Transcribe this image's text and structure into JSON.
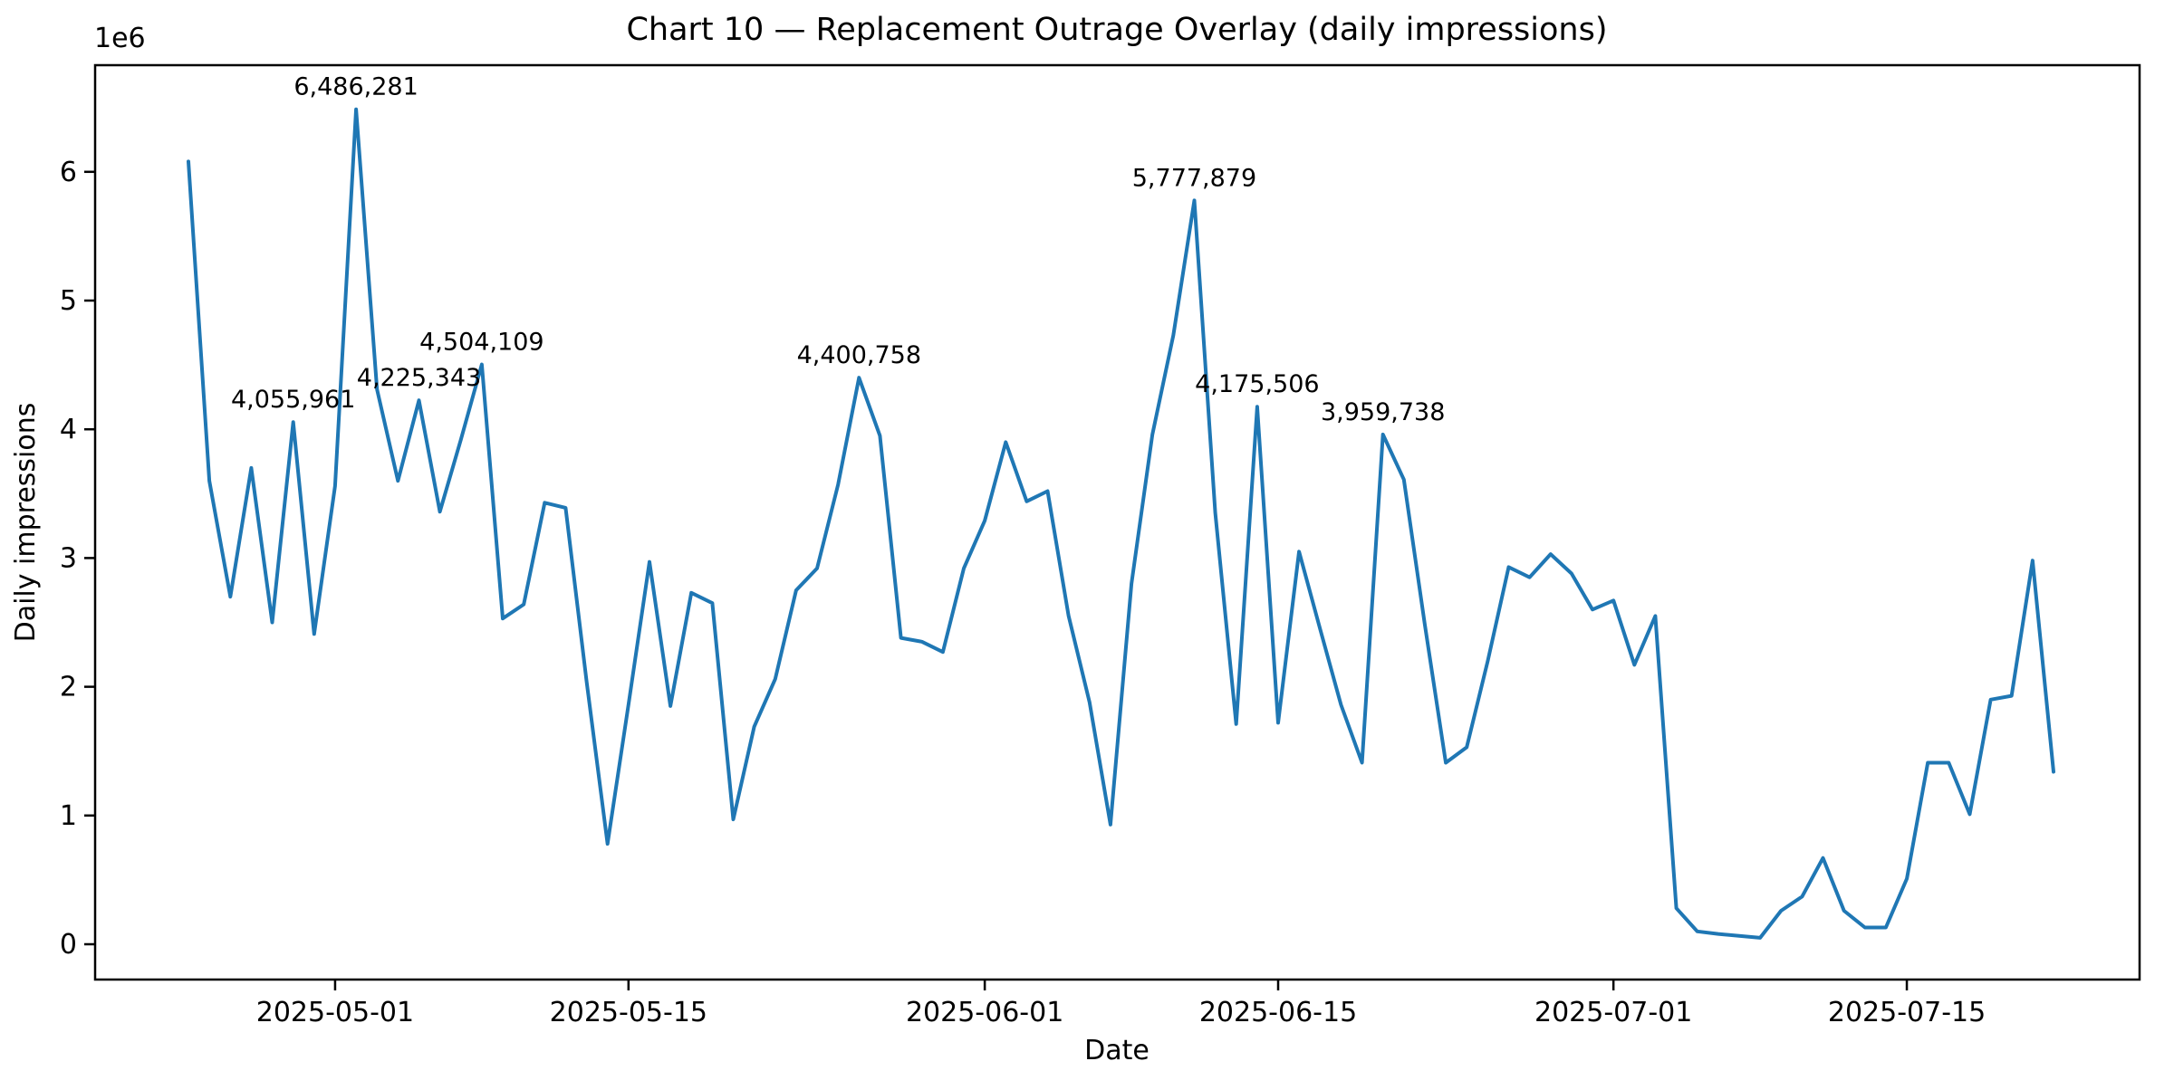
{
  "chart_data": {
    "type": "line",
    "title": "Chart 10 — Replacement Outrage Overlay (daily impressions)",
    "xlabel": "Date",
    "ylabel": "Daily impressions",
    "y_axis_offset_label": "1e6",
    "line_color": "#1f77b4",
    "grid": false,
    "legend_position": "none",
    "ylim": [
      -274000,
      6830000
    ],
    "y_tick_values": [
      0,
      1,
      2,
      3,
      4,
      5,
      6
    ],
    "x_tick_dates": [
      "2025-05-01",
      "2025-05-15",
      "2025-06-01",
      "2025-06-15",
      "2025-07-01",
      "2025-07-15"
    ],
    "points": [
      [
        "2025-04-24",
        6080000
      ],
      [
        "2025-04-25",
        3600000
      ],
      [
        "2025-04-26",
        2700000
      ],
      [
        "2025-04-27",
        3700000
      ],
      [
        "2025-04-28",
        2500000
      ],
      [
        "2025-04-29",
        4055961
      ],
      [
        "2025-04-30",
        2410000
      ],
      [
        "2025-05-01",
        3560000
      ],
      [
        "2025-05-02",
        6486281
      ],
      [
        "2025-05-03",
        4310000
      ],
      [
        "2025-05-04",
        3600000
      ],
      [
        "2025-05-05",
        4225343
      ],
      [
        "2025-05-06",
        3360000
      ],
      [
        "2025-05-07",
        3920000
      ],
      [
        "2025-05-08",
        4504109
      ],
      [
        "2025-05-09",
        2530000
      ],
      [
        "2025-05-10",
        2640000
      ],
      [
        "2025-05-11",
        3430000
      ],
      [
        "2025-05-12",
        3390000
      ],
      [
        "2025-05-13",
        2040000
      ],
      [
        "2025-05-14",
        780000
      ],
      [
        "2025-05-15",
        1860000
      ],
      [
        "2025-05-16",
        2970000
      ],
      [
        "2025-05-17",
        1850000
      ],
      [
        "2025-05-18",
        2730000
      ],
      [
        "2025-05-19",
        2650000
      ],
      [
        "2025-05-20",
        970000
      ],
      [
        "2025-05-21",
        1690000
      ],
      [
        "2025-05-22",
        2060000
      ],
      [
        "2025-05-23",
        2750000
      ],
      [
        "2025-05-24",
        2920000
      ],
      [
        "2025-05-25",
        3570000
      ],
      [
        "2025-05-26",
        4400758
      ],
      [
        "2025-05-27",
        3950000
      ],
      [
        "2025-05-28",
        2380000
      ],
      [
        "2025-05-29",
        2350000
      ],
      [
        "2025-05-30",
        2270000
      ],
      [
        "2025-05-31",
        2920000
      ],
      [
        "2025-06-01",
        3290000
      ],
      [
        "2025-06-02",
        3900000
      ],
      [
        "2025-06-03",
        3440000
      ],
      [
        "2025-06-04",
        3520000
      ],
      [
        "2025-06-05",
        2550000
      ],
      [
        "2025-06-06",
        1880000
      ],
      [
        "2025-06-07",
        930000
      ],
      [
        "2025-06-08",
        2800000
      ],
      [
        "2025-06-09",
        3960000
      ],
      [
        "2025-06-10",
        4730000
      ],
      [
        "2025-06-11",
        5777879
      ],
      [
        "2025-06-12",
        3350000
      ],
      [
        "2025-06-13",
        1710000
      ],
      [
        "2025-06-14",
        4175506
      ],
      [
        "2025-06-15",
        1720000
      ],
      [
        "2025-06-16",
        3050000
      ],
      [
        "2025-06-17",
        2450000
      ],
      [
        "2025-06-18",
        1860000
      ],
      [
        "2025-06-19",
        1410000
      ],
      [
        "2025-06-20",
        3959738
      ],
      [
        "2025-06-21",
        3610000
      ],
      [
        "2025-06-22",
        2480000
      ],
      [
        "2025-06-23",
        1410000
      ],
      [
        "2025-06-24",
        1530000
      ],
      [
        "2025-06-25",
        2200000
      ],
      [
        "2025-06-26",
        2930000
      ],
      [
        "2025-06-27",
        2850000
      ],
      [
        "2025-06-28",
        3030000
      ],
      [
        "2025-06-29",
        2880000
      ],
      [
        "2025-06-30",
        2600000
      ],
      [
        "2025-07-01",
        2670000
      ],
      [
        "2025-07-02",
        2170000
      ],
      [
        "2025-07-03",
        2550000
      ],
      [
        "2025-07-04",
        280000
      ],
      [
        "2025-07-05",
        100000
      ],
      [
        "2025-07-06",
        80000
      ],
      [
        "2025-07-07",
        65000
      ],
      [
        "2025-07-08",
        50000
      ],
      [
        "2025-07-09",
        260000
      ],
      [
        "2025-07-10",
        370000
      ],
      [
        "2025-07-11",
        670000
      ],
      [
        "2025-07-12",
        260000
      ],
      [
        "2025-07-13",
        130000
      ],
      [
        "2025-07-14",
        130000
      ],
      [
        "2025-07-15",
        510000
      ],
      [
        "2025-07-16",
        1410000
      ],
      [
        "2025-07-17",
        1410000
      ],
      [
        "2025-07-18",
        1010000
      ],
      [
        "2025-07-19",
        1900000
      ],
      [
        "2025-07-20",
        1930000
      ],
      [
        "2025-07-21",
        2980000
      ],
      [
        "2025-07-22",
        1340000
      ]
    ],
    "annotations": [
      [
        "2025-04-29",
        "4,055,961"
      ],
      [
        "2025-05-02",
        "6,486,281"
      ],
      [
        "2025-05-05",
        "4,225,343"
      ],
      [
        "2025-05-08",
        "4,504,109"
      ],
      [
        "2025-05-26",
        "4,400,758"
      ],
      [
        "2025-06-11",
        "5,777,879"
      ],
      [
        "2025-06-14",
        "4,175,506"
      ],
      [
        "2025-06-20",
        "3,959,738"
      ]
    ]
  }
}
